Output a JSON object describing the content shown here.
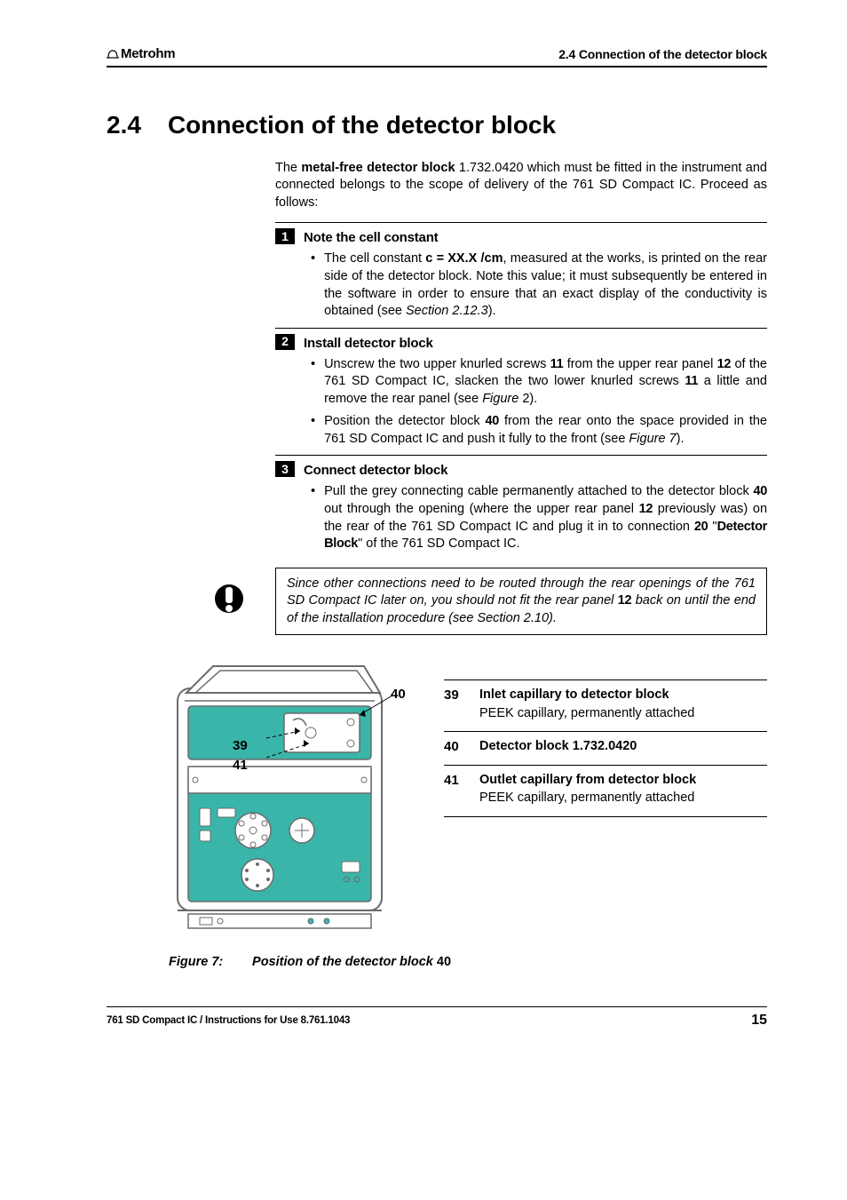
{
  "header": {
    "brand": "Metrohm",
    "section_ref": "2.4  Connection of the detector block"
  },
  "title": {
    "number": "2.4",
    "text": "Connection of the detector block"
  },
  "intro": {
    "pre": "The ",
    "bold": "metal-free detector block",
    "post": " 1.732.0420 which must be fitted in the instrument and connected belongs to the scope of delivery of the 761 SD Compact IC. Proceed as follows:"
  },
  "steps": [
    {
      "num": "1",
      "title": "Note the cell constant",
      "bullets": [
        {
          "html": "The cell constant <b>c = XX.X /cm</b>, measured at the works, is printed on the rear side of the detector block. Note this value; it must subsequently be entered in the software in order to ensure that an exact display of the conductivity is obtained (see <i>Section 2.12.3</i>)."
        }
      ]
    },
    {
      "num": "2",
      "title": "Install detector block",
      "bullets": [
        {
          "html": "Unscrew the two upper knurled screws <span class='bold-cond'>11</span> from the upper rear panel <span class='bold-cond'>12</span> of the 761 SD Compact IC, slacken the two lower knurled screws <span class='bold-cond'>11</span> a little and remove the rear panel (see <i>Figure</i> 2)."
        },
        {
          "html": "Position the detector block <span class='bold-cond'>40</span> from the rear onto the space provided in the 761 SD Compact IC and push it fully to the front (see <i>Figure 7</i>)."
        }
      ]
    },
    {
      "num": "3",
      "title": "Connect detector block",
      "bullets": [
        {
          "html": "Pull the grey connecting cable permanently attached to the detector block <span class='bold-cond'>40</span> out through the opening (where the upper rear panel <span class='bold-cond'>12</span> previously was) on the rear of the 761 SD Compact IC and plug it in to connection <span class='bold-cond'>20</span> \"<span class='bold-cond'>Detector Block</span>\" of the 761 SD Compact IC."
        }
      ]
    }
  ],
  "note": {
    "html": "Since other connections need to be routed through the rear openings of the 761 SD Compact IC later on, you should not fit the rear panel <span class='bold-cond' style='font-style:normal'>12</span> back on until the end of the installation procedure (see Section 2.10)."
  },
  "figure": {
    "callouts": {
      "c40": "40",
      "c39": "39",
      "c41": "41"
    },
    "colors": {
      "outline": "#6b6b6b",
      "panel": "#ffffff",
      "teal": "#3ab5a9",
      "inner": "#e8e8e8"
    },
    "legend": [
      {
        "num": "39",
        "title": "Inlet capillary to detector block",
        "sub": "PEEK capillary, permanently attached"
      },
      {
        "num": "40",
        "title": "Detector block 1.732.0420",
        "sub": ""
      },
      {
        "num": "41",
        "title": "Outlet capillary from detector block",
        "sub": "PEEK capillary, permanently attached"
      }
    ],
    "caption_prefix": "Figure 7:",
    "caption_text": "Position of the detector block ",
    "caption_part": "40"
  },
  "footer": {
    "left": "761 SD Compact IC / Instructions for Use  8.761.1043",
    "page": "15"
  }
}
